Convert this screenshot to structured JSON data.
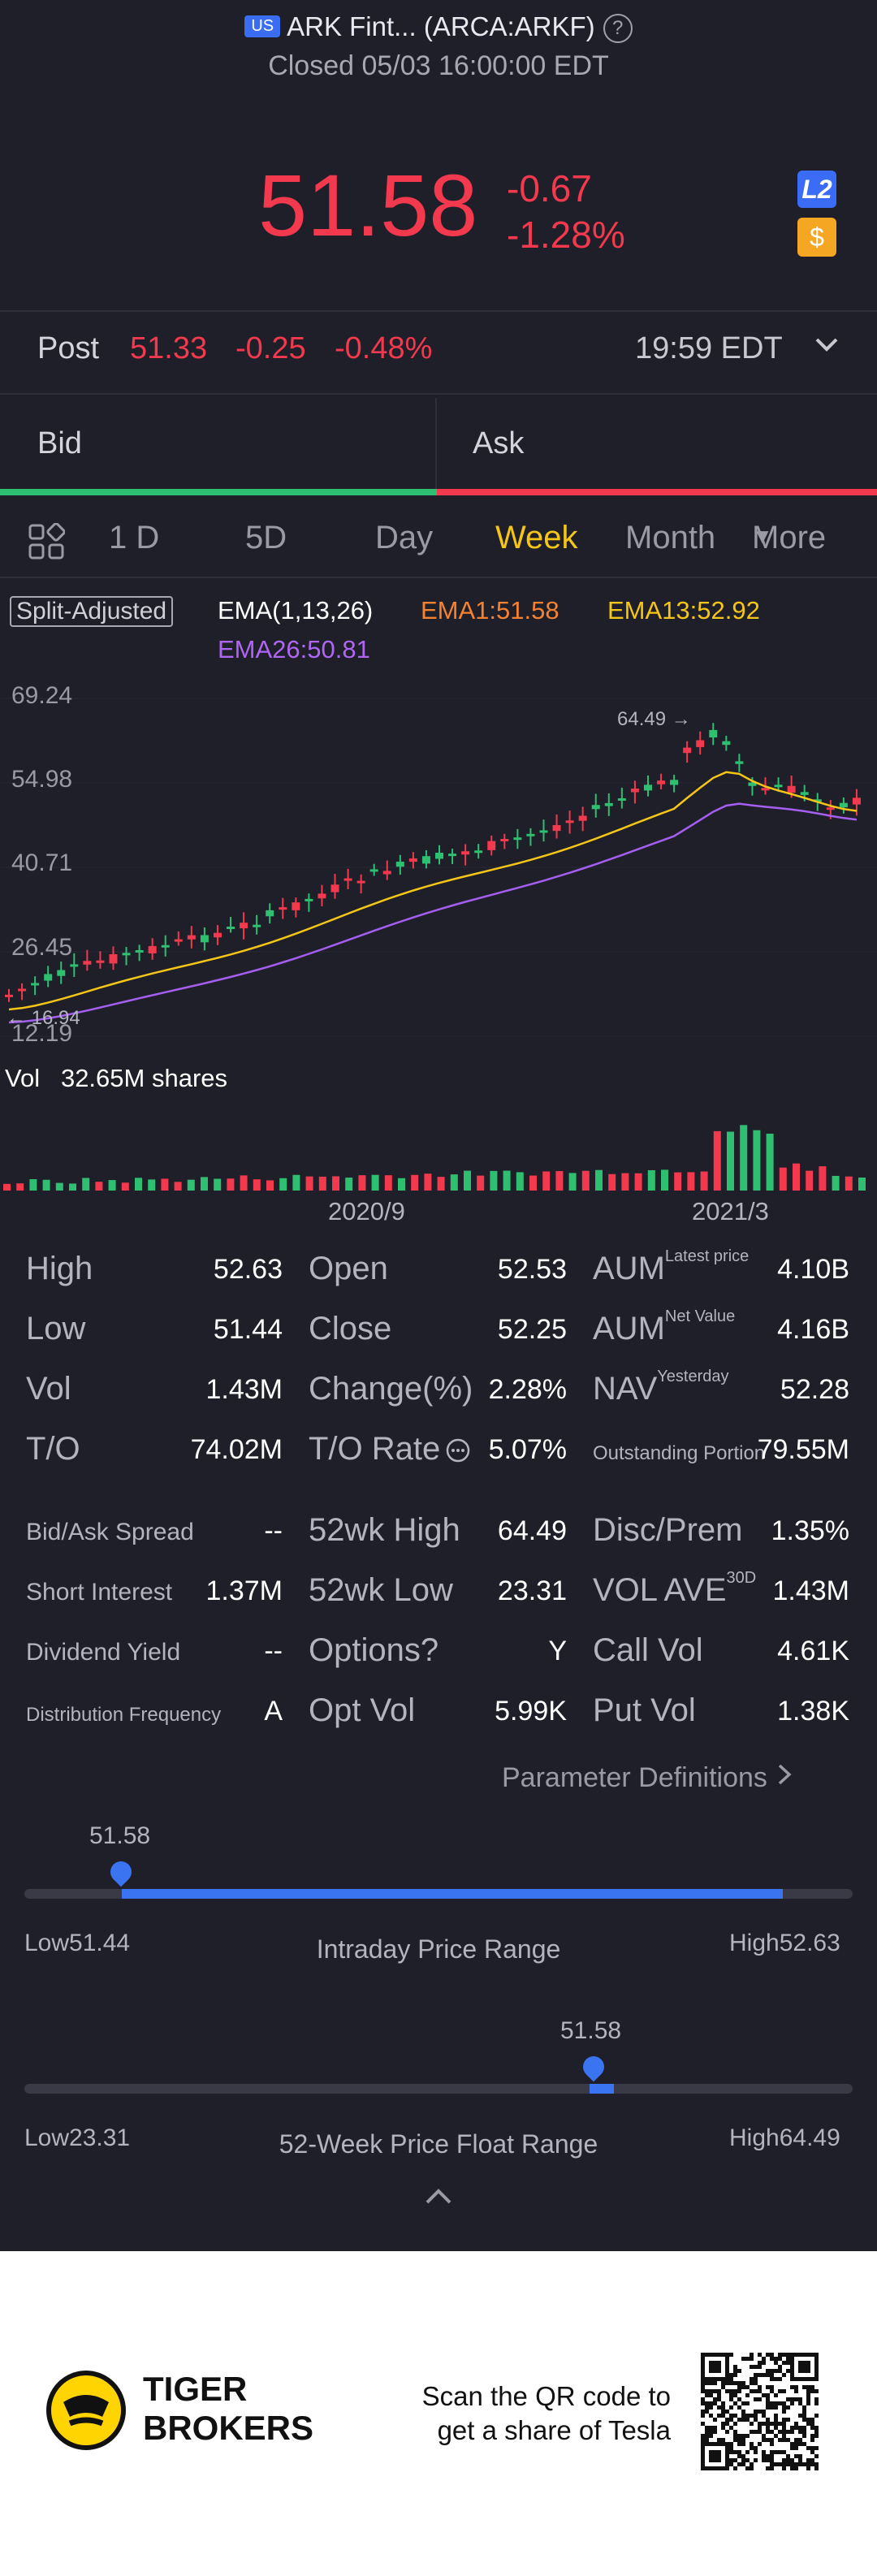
{
  "header": {
    "region_badge": "US",
    "title": "ARK Fint... (ARCA:ARKF)",
    "status": "Closed 05/03 16:00:00 EDT"
  },
  "quote": {
    "price": "51.58",
    "change": "-0.67",
    "change_pct": "-1.28%",
    "l2_badge": "L2",
    "dollar_badge": "$"
  },
  "post": {
    "label": "Post",
    "price": "51.33",
    "change": "-0.25",
    "change_pct": "-0.48%",
    "time": "19:59 EDT"
  },
  "bidask": {
    "bid": "Bid",
    "ask": "Ask"
  },
  "tabs": [
    "1 D",
    "5D",
    "Day",
    "Week",
    "Month",
    "More"
  ],
  "chart": {
    "split_label": "Split-Adjusted",
    "ema_label": "EMA(1,13,26)",
    "ema1": "EMA1:51.58",
    "ema13": "EMA13:52.92",
    "ema26": "EMA26:50.81",
    "y_ticks": [
      "69.24",
      "54.98",
      "40.71",
      "26.45",
      "12.19"
    ],
    "max_label": "64.49",
    "min_label": "16.94",
    "vol_label": "Vol",
    "vol_value": "32.65M shares",
    "x_ticks": [
      "2020/9",
      "2021/3"
    ],
    "colors": {
      "up": "#2fbf71",
      "down": "#f2394d",
      "ema1": "#f58231",
      "ema13": "#f5c518",
      "ema26": "#a55ff0"
    }
  },
  "stats": {
    "rows": [
      [
        {
          "label": "High",
          "value": "52.63"
        },
        {
          "label": "Open",
          "value": "52.53"
        },
        {
          "label": "AUM",
          "sup": "Latest price",
          "value": "4.10B"
        }
      ],
      [
        {
          "label": "Low",
          "value": "51.44"
        },
        {
          "label": "Close",
          "value": "52.25"
        },
        {
          "label": "AUM",
          "sup": "Net Value",
          "value": "4.16B"
        }
      ],
      [
        {
          "label": "Vol",
          "value": "1.43M"
        },
        {
          "label": "Change(%)",
          "value": "2.28%"
        },
        {
          "label": "NAV",
          "sup": "Yesterday",
          "value": "52.28"
        }
      ],
      [
        {
          "label": "T/O",
          "value": "74.02M"
        },
        {
          "label": "T/O Rate",
          "value": "5.07%"
        },
        {
          "label": "Outstanding Portion",
          "value": "79.55M"
        }
      ],
      [
        {
          "label": "Bid/Ask Spread",
          "value": "--"
        },
        {
          "label": "52wk High",
          "value": "64.49"
        },
        {
          "label": "Disc/Prem",
          "value": "1.35%"
        }
      ],
      [
        {
          "label": "Short Interest",
          "value": "1.37M"
        },
        {
          "label": "52wk Low",
          "value": "23.31"
        },
        {
          "label": "VOL AVE",
          "sup": "30D",
          "value": "1.43M"
        }
      ],
      [
        {
          "label": "Dividend Yield",
          "value": "--"
        },
        {
          "label": "Options?",
          "value": "Y"
        },
        {
          "label": "Call Vol",
          "value": "4.61K"
        }
      ],
      [
        {
          "label": "Distribution Frequency",
          "value": "A"
        },
        {
          "label": "Opt Vol",
          "value": "5.99K"
        },
        {
          "label": "Put Vol",
          "value": "1.38K"
        }
      ]
    ],
    "param_link": "Parameter Definitions"
  },
  "intraday": {
    "current": "51.58",
    "low_label": "Low",
    "low": "51.44",
    "high_label": "High",
    "high": "52.63",
    "title": "Intraday Price Range",
    "position_pct": 12
  },
  "week52": {
    "current": "51.58",
    "low_label": "Low",
    "low": "23.31",
    "high_label": "High",
    "high": "64.49",
    "title": "52-Week Price Float Range",
    "position_pct": 69
  },
  "footer": {
    "brand_line1": "TIGER",
    "brand_line2": "BROKERS",
    "cta_line1": "Scan the QR code to",
    "cta_line2": "get a share of Tesla"
  }
}
